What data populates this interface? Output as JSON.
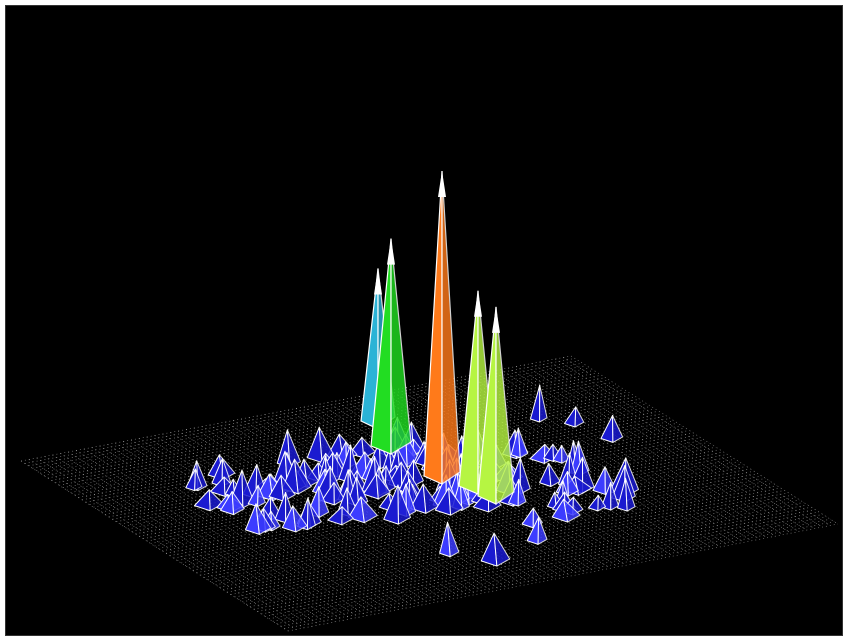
{
  "scene": {
    "description_free": true,
    "background": "#000000",
    "grid_color": "#d0d0d0",
    "wire_color": "#ffffff",
    "peak_colors": {
      "low": "#1a1ad0",
      "cyan": "#2bb3d6",
      "green": "#22dd22",
      "lime": "#b6f542",
      "orange": "#ff7a1a"
    }
  },
  "peaks": [
    {
      "label": "orange-peak",
      "height_rel": 1.0,
      "color": "orange"
    },
    {
      "label": "green-peak-left",
      "height_rel": 0.68,
      "color": "green"
    },
    {
      "label": "cyan-peak-left",
      "height_rel": 0.5,
      "color": "cyan"
    },
    {
      "label": "lime-peak-a",
      "height_rel": 0.64,
      "color": "lime"
    },
    {
      "label": "lime-peak-b",
      "height_rel": 0.62,
      "color": "lime"
    }
  ]
}
